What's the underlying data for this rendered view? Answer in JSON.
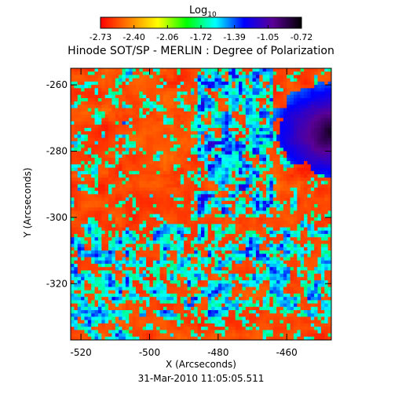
{
  "chart_data": {
    "type": "heatmap",
    "title": "Hinode SOT/SP - MERLIN : Degree of Polarization",
    "colorbar": {
      "label_base": "Log",
      "label_sub": "10",
      "tick_labels": [
        "-2.73",
        "-2.40",
        "-2.06",
        "-1.72",
        "-1.39",
        "-1.05",
        "-0.72"
      ],
      "range": [
        -2.73,
        -0.72
      ],
      "colormap": [
        "#ff0000",
        "#ff8000",
        "#ffff00",
        "#00ff00",
        "#00ffff",
        "#0000ff",
        "#5a0096",
        "#000000"
      ]
    },
    "xlabel": "X (Arcseconds)",
    "ylabel": "Y (Arcseconds)",
    "xlim": [
      -523,
      -447
    ],
    "ylim": [
      -337,
      -255
    ],
    "x_ticks": [
      -520,
      -500,
      -480,
      -460
    ],
    "y_ticks": [
      -320,
      -300,
      -280,
      -260
    ],
    "x_tick_labels": [
      "-520",
      "-500",
      "-480",
      "-460"
    ],
    "y_tick_labels": [
      "-320",
      "-300",
      "-280",
      "-260"
    ],
    "grid": false,
    "field_features": {
      "spot_umbra_center": [
        -447,
        -274
      ],
      "spot_umbra_radius_arcsec": 6,
      "spot_penumbra_radius_arcsec": 14,
      "network_band_x_range": [
        -482,
        -470
      ],
      "background_log_degree": -2.7
    }
  },
  "footer": {
    "timestamp": "31-Mar-2010 11:05:05.511"
  }
}
